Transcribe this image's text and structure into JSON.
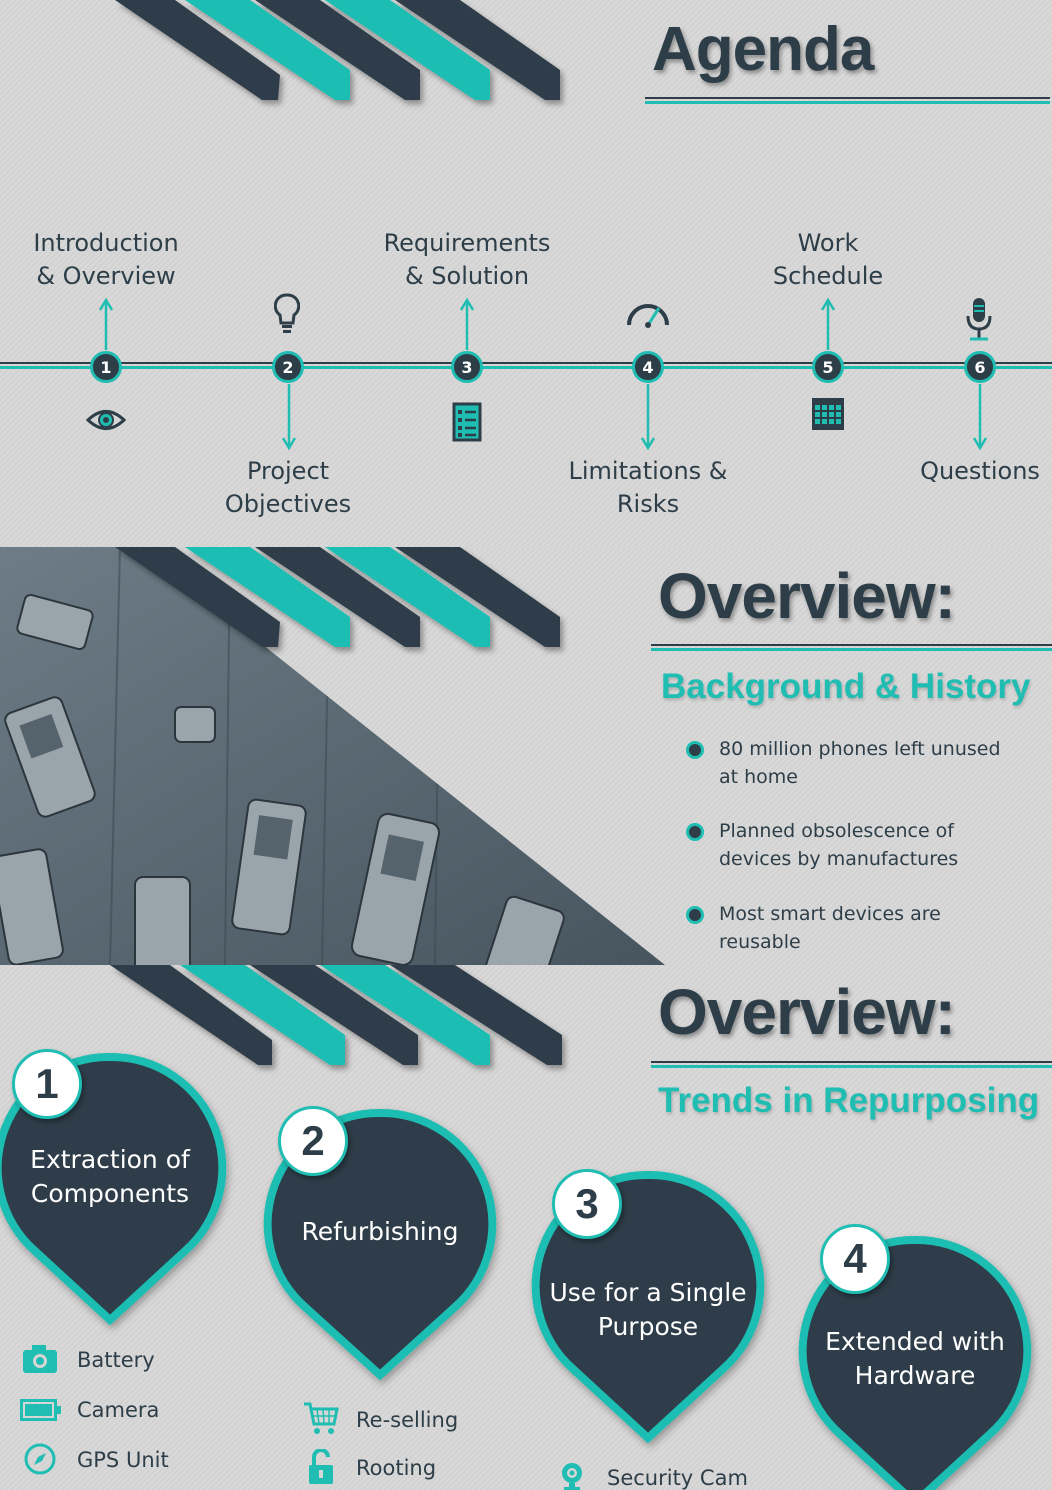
{
  "colors": {
    "teal": "#1fbdb2",
    "dark": "#2e3e48",
    "background": "#d6d6d6"
  },
  "slide1": {
    "title": "Agenda",
    "items": [
      {
        "number": "1",
        "line1": "Introduction",
        "line2": "& Overview",
        "icon": "eye-icon"
      },
      {
        "number": "2",
        "line1": "Project",
        "line2": "Objectives",
        "icon": "lightbulb-icon"
      },
      {
        "number": "3",
        "line1": "Requirements",
        "line2": "& Solution",
        "icon": "checklist-icon"
      },
      {
        "number": "4",
        "line1": "Limitations &",
        "line2": "Risks",
        "icon": "speedometer-icon"
      },
      {
        "number": "5",
        "line1": "Work",
        "line2": "Schedule",
        "icon": "calendar-icon"
      },
      {
        "number": "6",
        "line1": "Questions",
        "line2": "",
        "icon": "microphone-icon"
      }
    ]
  },
  "slide2": {
    "title": "Overview:",
    "subtitle": "Background & History",
    "bullets": [
      {
        "line1": "80 million phones left unused",
        "line2": "at home"
      },
      {
        "line1": "Planned obsolescence of",
        "line2": "devices by manufactures"
      },
      {
        "line1": "Most smart devices are",
        "line2": "reusable"
      }
    ],
    "image": "old-mobile-phones-photo"
  },
  "slide3": {
    "title": "Overview:",
    "subtitle": "Trends in Repurposing",
    "pins": [
      {
        "number": "1",
        "line1": "Extraction of",
        "line2": "Components"
      },
      {
        "number": "2",
        "line1": "Refurbishing",
        "line2": ""
      },
      {
        "number": "3",
        "line1": "Use for a Single",
        "line2": "Purpose"
      },
      {
        "number": "4",
        "line1": "Extended with",
        "line2": "Hardware"
      }
    ],
    "components": [
      {
        "label": "Battery",
        "icon": "camera-icon"
      },
      {
        "label": "Camera",
        "icon": "battery-icon"
      },
      {
        "label": "GPS Unit",
        "icon": "compass-icon"
      }
    ],
    "refurbishing": [
      {
        "label": "Re-selling",
        "icon": "cart-icon"
      },
      {
        "label": "Rooting",
        "icon": "unlock-icon"
      }
    ],
    "single_purpose": [
      {
        "label": "Security Cam",
        "icon": "webcam-icon"
      }
    ]
  }
}
